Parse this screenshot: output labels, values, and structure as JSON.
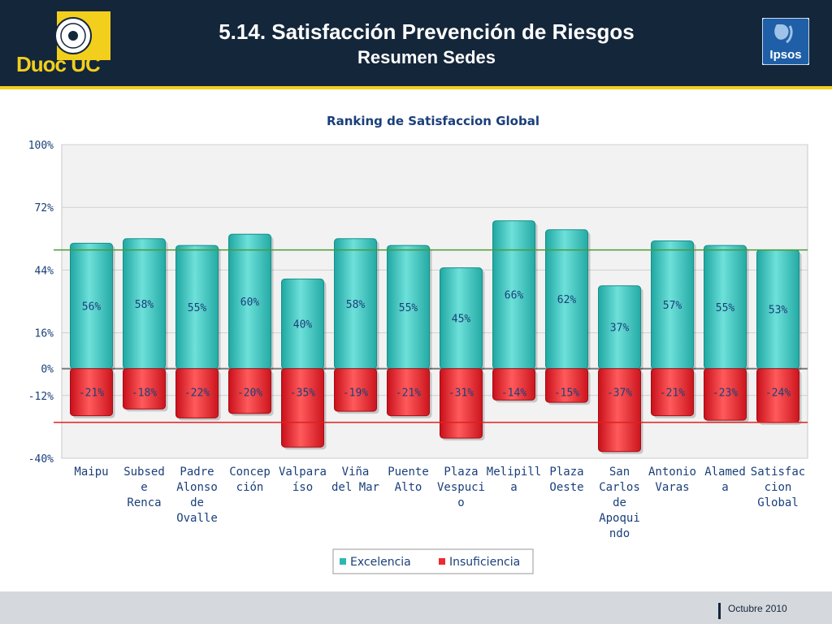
{
  "header": {
    "title": "5.14. Satisfacción Prevención de Riesgos",
    "subtitle": "Resumen Sedes",
    "logo_left": "Duoc UC",
    "logo_right": "Ipsos"
  },
  "footer": {
    "date": "Octubre 2010"
  },
  "colors": {
    "header_bg": "#14263a",
    "accent_gold": "#f2cf1c",
    "excelencia": "#3cc8c2",
    "insuficiencia": "#ee2b2f",
    "ref_line_green": "#4a9a3a",
    "ref_line_red": "#e02020"
  },
  "chart_data": {
    "type": "bar",
    "title": "Ranking de Satisfaccion Global",
    "ylim": [
      -40,
      100
    ],
    "yticks": [
      "100%",
      "72%",
      "44%",
      "16%",
      "0%",
      "-12%",
      "-40%"
    ],
    "ytick_values": [
      100,
      72,
      44,
      16,
      0,
      -12,
      -40
    ],
    "categories": [
      [
        "Maipu"
      ],
      [
        "Subsed",
        "e",
        "Renca"
      ],
      [
        "Padre",
        "Alonso",
        "de",
        "Ovalle"
      ],
      [
        "Concep",
        "ción"
      ],
      [
        "Valpara",
        "íso"
      ],
      [
        "Viña",
        "del Mar"
      ],
      [
        "Puente",
        "Alto"
      ],
      [
        "Plaza",
        "Vespuci",
        "o"
      ],
      [
        "Melipill",
        "a"
      ],
      [
        "Plaza",
        "Oeste"
      ],
      [
        "San",
        "Carlos",
        "de",
        "Apoqui",
        "ndo"
      ],
      [
        "Antonio",
        "Varas"
      ],
      [
        "Alamed",
        "a"
      ],
      [
        "Satisfac",
        "cion",
        "Global"
      ]
    ],
    "series": [
      {
        "name": "Excelencia",
        "values": [
          56,
          58,
          55,
          60,
          40,
          58,
          55,
          45,
          66,
          62,
          37,
          57,
          55,
          53
        ]
      },
      {
        "name": "Insuficiencia",
        "values": [
          -21,
          -18,
          -22,
          -20,
          -35,
          -19,
          -21,
          -31,
          -14,
          -15,
          -37,
          -21,
          -23,
          -24
        ]
      }
    ],
    "data_labels": [
      [
        "56%",
        "58%",
        "55%",
        "60%",
        "40%",
        "58%",
        "55%",
        "45%",
        "66%",
        "62%",
        "37%",
        "57%",
        "55%",
        "53%"
      ],
      [
        "-21%",
        "-18%",
        "-22%",
        "-20%",
        "-35%",
        "-19%",
        "-21%",
        "-31%",
        "-14%",
        "-15%",
        "-37%",
        "-21%",
        "-23%",
        "-24%"
      ]
    ],
    "reference_lines": [
      53,
      -24
    ],
    "legend": {
      "position": "bottom",
      "entries": [
        "Excelencia",
        "Insuficiencia"
      ]
    },
    "grid": true
  }
}
